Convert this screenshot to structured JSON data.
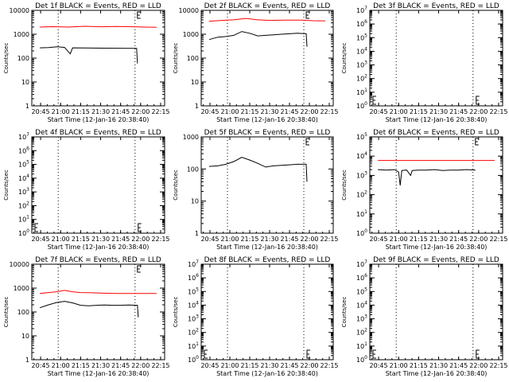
{
  "tick_labels_x": [
    "20:45",
    "21:00",
    "21:15",
    "21:30",
    "21:45",
    "22:00",
    "22:15"
  ],
  "x_tick_hours": [
    20.75,
    21.0,
    21.25,
    21.5,
    21.75,
    22.0,
    22.25
  ],
  "ylabel": "Counts/sec",
  "xlabel": "Start Time (12-Jan-16 20:38:40)",
  "colors": {
    "events": "#000000",
    "lld": "#ff0000"
  },
  "chart_data": [
    {
      "type": "line",
      "title": "Det 1f BLACK = Events, RED = LLD",
      "xlim_hours": [
        20.64,
        22.3
      ],
      "ylim": [
        1,
        10000
      ],
      "scale": "log",
      "yticks": [
        "1",
        "10",
        "100",
        "1000",
        "10000"
      ],
      "dotted_x_hours": [
        20.97,
        21.93
      ],
      "series": [
        {
          "name": "Events",
          "color": "black",
          "points": [
            [
              20.74,
              270
            ],
            [
              20.85,
              275
            ],
            [
              20.96,
              300
            ],
            [
              21.05,
              280
            ],
            [
              21.12,
              150
            ],
            [
              21.15,
              270
            ],
            [
              21.3,
              265
            ],
            [
              21.5,
              262
            ],
            [
              21.7,
              260
            ],
            [
              21.85,
              255
            ],
            [
              21.95,
              255
            ],
            [
              21.96,
              60
            ]
          ]
        },
        {
          "name": "LLD",
          "color": "red",
          "points": [
            [
              20.74,
              2000
            ],
            [
              20.9,
              2080
            ],
            [
              21.1,
              2000
            ],
            [
              21.3,
              2150
            ],
            [
              21.5,
              2050
            ],
            [
              21.7,
              2100
            ],
            [
              21.9,
              2050
            ],
            [
              22.05,
              2000
            ],
            [
              22.2,
              1950
            ]
          ]
        }
      ]
    },
    {
      "type": "line",
      "title": "Det 2f BLACK = Events, RED = LLD",
      "xlim_hours": [
        20.64,
        22.3
      ],
      "ylim": [
        1,
        10000
      ],
      "scale": "log",
      "yticks": [
        "1",
        "10",
        "100",
        "1000",
        "10000"
      ],
      "dotted_x_hours": [
        20.97,
        21.93
      ],
      "series": [
        {
          "name": "Events",
          "color": "black",
          "points": [
            [
              20.74,
              600
            ],
            [
              20.85,
              750
            ],
            [
              20.95,
              800
            ],
            [
              21.05,
              900
            ],
            [
              21.15,
              1300
            ],
            [
              21.25,
              1100
            ],
            [
              21.35,
              850
            ],
            [
              21.45,
              900
            ],
            [
              21.55,
              950
            ],
            [
              21.65,
              1000
            ],
            [
              21.75,
              1050
            ],
            [
              21.85,
              1100
            ],
            [
              21.96,
              1050
            ],
            [
              21.97,
              300
            ]
          ]
        },
        {
          "name": "LLD",
          "color": "red",
          "points": [
            [
              20.74,
              3500
            ],
            [
              20.9,
              3800
            ],
            [
              21.05,
              4000
            ],
            [
              21.2,
              4600
            ],
            [
              21.35,
              4000
            ],
            [
              21.5,
              3800
            ],
            [
              21.7,
              3900
            ],
            [
              21.9,
              3900
            ],
            [
              22.05,
              3700
            ],
            [
              22.2,
              3600
            ]
          ]
        }
      ]
    },
    {
      "type": "line",
      "title": "Det 3f BLACK = Events, RED = LLD",
      "xlim_hours": [
        20.64,
        22.3
      ],
      "ylim": [
        1,
        10000000
      ],
      "scale": "log",
      "yticks": [
        "10^0",
        "10^1",
        "10^2",
        "10^3",
        "10^4",
        "10^5",
        "10^6",
        "10^7"
      ],
      "dotted_x_hours": [
        20.97,
        21.93
      ],
      "series": []
    },
    {
      "type": "line",
      "title": "Det 4f BLACK = Events, RED = LLD",
      "xlim_hours": [
        20.64,
        22.3
      ],
      "ylim": [
        1,
        10000000
      ],
      "scale": "log",
      "yticks": [
        "10^0",
        "10^1",
        "10^2",
        "10^3",
        "10^4",
        "10^5",
        "10^6",
        "10^7"
      ],
      "dotted_x_hours": [
        20.97,
        21.93
      ],
      "series": []
    },
    {
      "type": "line",
      "title": "Det 5f BLACK = Events, RED = LLD",
      "xlim_hours": [
        20.64,
        22.3
      ],
      "ylim": [
        1,
        1000
      ],
      "scale": "log",
      "yticks": [
        "1",
        "10",
        "100",
        "1000"
      ],
      "dotted_x_hours": [
        20.97,
        21.93
      ],
      "series": [
        {
          "name": "Events",
          "color": "black",
          "points": [
            [
              20.74,
              120
            ],
            [
              20.85,
              125
            ],
            [
              20.95,
              140
            ],
            [
              21.05,
              170
            ],
            [
              21.15,
              230
            ],
            [
              21.25,
              190
            ],
            [
              21.35,
              150
            ],
            [
              21.45,
              115
            ],
            [
              21.55,
              125
            ],
            [
              21.65,
              130
            ],
            [
              21.75,
              135
            ],
            [
              21.85,
              140
            ],
            [
              21.96,
              140
            ],
            [
              21.97,
              40
            ]
          ]
        }
      ]
    },
    {
      "type": "line",
      "title": "Det 6f BLACK = Events, RED = LLD",
      "xlim_hours": [
        20.64,
        22.3
      ],
      "ylim": [
        1,
        100000
      ],
      "scale": "log",
      "yticks": [
        "10^0",
        "10^1",
        "10^2",
        "10^3",
        "10^4",
        "10^5"
      ],
      "dotted_x_hours": [
        20.97,
        21.93
      ],
      "series": [
        {
          "name": "Events",
          "color": "black",
          "points": [
            [
              20.74,
              2000
            ],
            [
              20.85,
              1900
            ],
            [
              20.95,
              2000
            ],
            [
              21.0,
              1500
            ],
            [
              21.02,
              300
            ],
            [
              21.04,
              1800
            ],
            [
              21.1,
              1900
            ],
            [
              21.15,
              1000
            ],
            [
              21.17,
              1800
            ],
            [
              21.25,
              1900
            ],
            [
              21.35,
              1900
            ],
            [
              21.45,
              2000
            ],
            [
              21.55,
              1800
            ],
            [
              21.65,
              1900
            ],
            [
              21.75,
              1900
            ],
            [
              21.85,
              2000
            ],
            [
              21.96,
              1900
            ]
          ]
        },
        {
          "name": "LLD",
          "color": "red",
          "points": [
            [
              20.74,
              6000
            ],
            [
              20.9,
              6000
            ],
            [
              21.1,
              6000
            ],
            [
              21.3,
              6000
            ],
            [
              21.5,
              6000
            ],
            [
              21.7,
              6000
            ],
            [
              21.9,
              6000
            ],
            [
              22.05,
              6000
            ],
            [
              22.2,
              6000
            ]
          ]
        }
      ]
    },
    {
      "type": "line",
      "title": "Det 7f BLACK = Events, RED = LLD",
      "xlim_hours": [
        20.64,
        22.3
      ],
      "ylim": [
        1,
        10000
      ],
      "scale": "log",
      "yticks": [
        "1",
        "10",
        "100",
        "1000",
        "10000"
      ],
      "dotted_x_hours": [
        20.97,
        21.93
      ],
      "series": [
        {
          "name": "Events",
          "color": "black",
          "points": [
            [
              20.74,
              150
            ],
            [
              20.85,
              200
            ],
            [
              20.95,
              250
            ],
            [
              21.05,
              280
            ],
            [
              21.15,
              240
            ],
            [
              21.25,
              190
            ],
            [
              21.35,
              180
            ],
            [
              21.45,
              190
            ],
            [
              21.55,
              195
            ],
            [
              21.65,
              190
            ],
            [
              21.75,
              190
            ],
            [
              21.85,
              195
            ],
            [
              21.96,
              190
            ],
            [
              21.97,
              60
            ]
          ]
        },
        {
          "name": "LLD",
          "color": "red",
          "points": [
            [
              20.74,
              600
            ],
            [
              20.85,
              650
            ],
            [
              20.95,
              700
            ],
            [
              21.05,
              800
            ],
            [
              21.15,
              700
            ],
            [
              21.25,
              650
            ],
            [
              21.35,
              640
            ],
            [
              21.5,
              620
            ],
            [
              21.7,
              600
            ],
            [
              21.9,
              600
            ],
            [
              22.05,
              600
            ],
            [
              22.2,
              600
            ]
          ]
        }
      ]
    },
    {
      "type": "line",
      "title": "Det 8f BLACK = Events, RED = LLD",
      "xlim_hours": [
        20.64,
        22.3
      ],
      "ylim": [
        1,
        10000000
      ],
      "scale": "log",
      "yticks": [
        "10^0",
        "10^1",
        "10^2",
        "10^3",
        "10^4",
        "10^5",
        "10^6",
        "10^7"
      ],
      "dotted_x_hours": [
        20.97,
        21.93
      ],
      "series": []
    },
    {
      "type": "line",
      "title": "Det 9f BLACK = Events, RED = LLD",
      "xlim_hours": [
        20.64,
        22.3
      ],
      "ylim": [
        1,
        10000000
      ],
      "scale": "log",
      "yticks": [
        "10^0",
        "10^1",
        "10^2",
        "10^3",
        "10^4",
        "10^5",
        "10^6",
        "10^7"
      ],
      "dotted_x_hours": [
        20.97,
        21.93
      ],
      "series": []
    }
  ]
}
